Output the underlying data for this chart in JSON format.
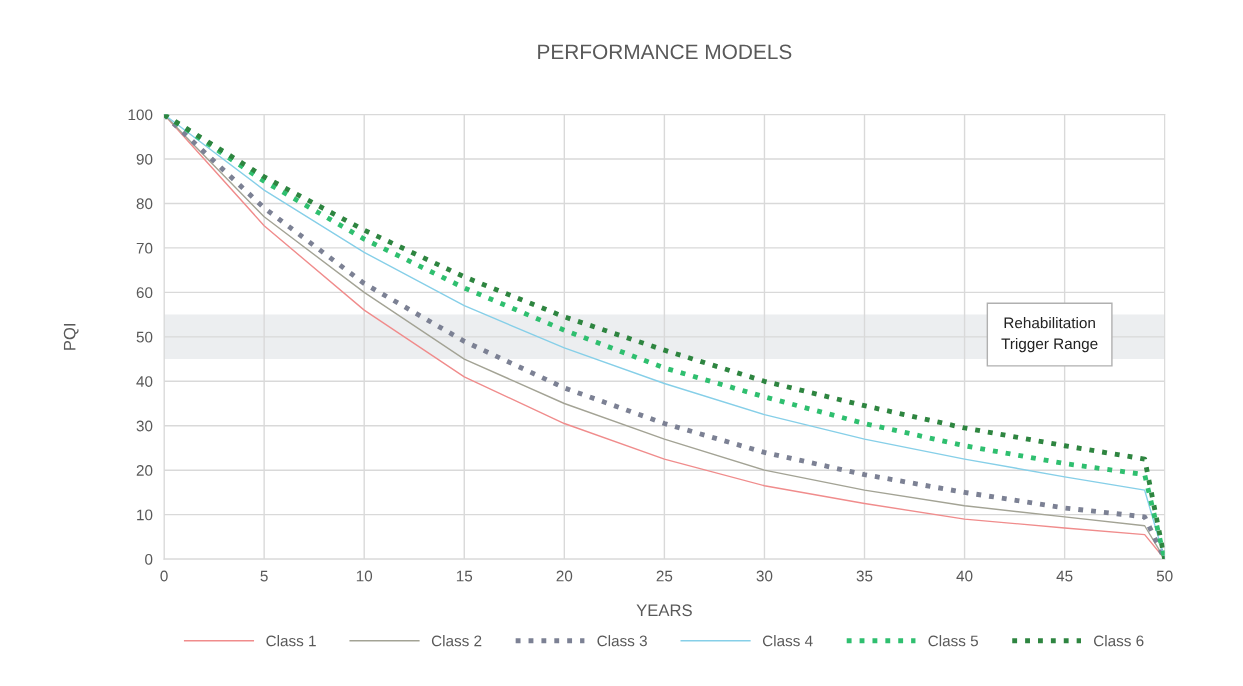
{
  "chart_data": {
    "type": "line",
    "title": "PERFORMANCE MODELS",
    "xlabel": "YEARS",
    "ylabel": "PQI",
    "x": [
      0,
      5,
      10,
      15,
      20,
      25,
      30,
      35,
      40,
      45,
      49,
      50
    ],
    "series": [
      {
        "name": "Class 1",
        "color": "#f08c8c",
        "line_style": "solid",
        "values": [
          100,
          75,
          56,
          41,
          30.5,
          22.5,
          16.5,
          12.5,
          9,
          7,
          5.5,
          0
        ]
      },
      {
        "name": "Class 2",
        "color": "#a3a395",
        "line_style": "solid",
        "values": [
          100,
          77,
          60,
          45,
          35,
          27,
          20,
          15.5,
          12,
          9.5,
          7.5,
          0
        ]
      },
      {
        "name": "Class 3",
        "color": "#7c8194",
        "line_style": "dotted",
        "values": [
          100,
          79,
          62,
          49,
          38.5,
          30.5,
          24,
          19,
          15,
          11.5,
          9.5,
          0
        ]
      },
      {
        "name": "Class 4",
        "color": "#86cfe8",
        "line_style": "solid",
        "values": [
          100,
          83,
          69,
          57,
          47.5,
          39.5,
          32.5,
          27,
          22.5,
          18.5,
          15.5,
          0
        ]
      },
      {
        "name": "Class 5",
        "color": "#2fbf6f",
        "line_style": "dotted",
        "values": [
          100,
          85,
          72,
          61,
          51.5,
          43,
          36.5,
          30.5,
          25.5,
          21.5,
          19,
          0
        ]
      },
      {
        "name": "Class 6",
        "color": "#2e8540",
        "line_style": "dotted",
        "values": [
          100,
          86,
          74,
          63.5,
          54.5,
          47,
          40,
          34.5,
          29.5,
          25.5,
          22.5,
          0
        ]
      }
    ],
    "bands": [
      {
        "axis": "y",
        "from": 45,
        "to": 55,
        "label": "Rehabilitation\nTrigger Range",
        "color": "#eceef0"
      }
    ],
    "xlim": [
      0,
      50
    ],
    "ylim": [
      0,
      100
    ],
    "xticks": [
      0,
      5,
      10,
      15,
      20,
      25,
      30,
      35,
      40,
      45,
      50
    ],
    "yticks": [
      0,
      10,
      20,
      30,
      40,
      50,
      60,
      70,
      80,
      90,
      100
    ],
    "grid": true,
    "legend": "bottom",
    "marker": "none"
  }
}
